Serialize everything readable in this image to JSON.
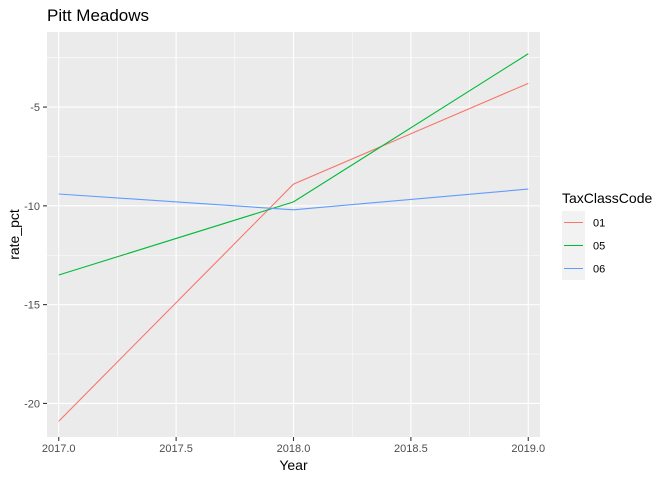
{
  "chart_data": {
    "type": "line",
    "title": "Pitt Meadows",
    "xlabel": "Year",
    "ylabel": "rate_pct",
    "xlim": [
      2016.95,
      2019.05
    ],
    "ylim": [
      -21.7,
      -1.2
    ],
    "x_ticks": [
      2017.0,
      2017.5,
      2018.0,
      2018.5,
      2019.0
    ],
    "x_tick_labels": [
      "2017.0",
      "2017.5",
      "2018.0",
      "2018.5",
      "2019.0"
    ],
    "y_ticks": [
      -20,
      -15,
      -10,
      -5
    ],
    "y_tick_labels": [
      "-20",
      "-15",
      "-10",
      "-5"
    ],
    "x": [
      2017.0,
      2018.0,
      2019.0
    ],
    "legend_title": "TaxClassCode",
    "legend_position": "right",
    "series": [
      {
        "name": "01",
        "color": "#F8766D",
        "values": [
          -20.9,
          -8.9,
          -3.8
        ]
      },
      {
        "name": "05",
        "color": "#00BA38",
        "values": [
          -13.5,
          -9.8,
          -2.3
        ]
      },
      {
        "name": "06",
        "color": "#619CFF",
        "values": [
          -9.4,
          -10.2,
          -9.15
        ]
      }
    ],
    "panel_color": "#EBEBEB",
    "grid_color": "#FFFFFF"
  }
}
